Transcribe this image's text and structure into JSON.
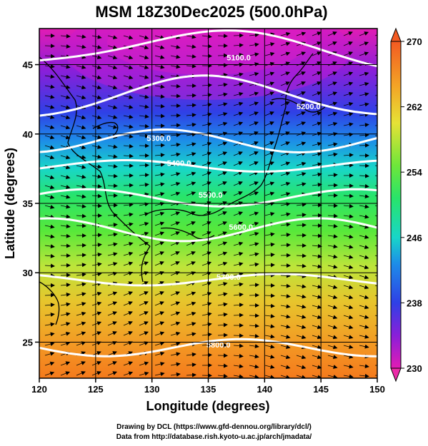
{
  "chart_data": {
    "type": "heatmap",
    "title": "MSM 18Z30Dec2025 (500.0hPa)",
    "xlabel": "Longitude (degrees)",
    "ylabel": "Latitude  (degrees)",
    "xlim": [
      120,
      150
    ],
    "ylim": [
      22.4,
      47.6
    ],
    "xticks": [
      120,
      125,
      130,
      135,
      140,
      145,
      150
    ],
    "yticks": [
      25,
      30,
      35,
      40,
      45
    ],
    "xticklabels": [
      "120",
      "125",
      "130",
      "135",
      "140",
      "145",
      "150"
    ],
    "yticklabels": [
      "25",
      "30",
      "35",
      "40",
      "45"
    ],
    "grid": true,
    "colorbar": {
      "min": 230,
      "max": 270,
      "ticks": [
        230,
        238,
        246,
        254,
        262,
        270
      ],
      "ticklabels": [
        "230",
        "238",
        "246",
        "254",
        "262",
        "270"
      ],
      "extend": "both"
    },
    "contours": [
      {
        "label": "5100.0",
        "lon": 137.7,
        "lat": 45.3
      },
      {
        "label": "5200.0",
        "lon": 143.9,
        "lat": 41.8
      },
      {
        "label": "5300.0",
        "lon": 130.6,
        "lat": 39.5
      },
      {
        "label": "5400.0",
        "lon": 132.4,
        "lat": 37.7
      },
      {
        "label": "5500.0",
        "lon": 135.2,
        "lat": 35.4
      },
      {
        "label": "5600.0",
        "lon": 137.9,
        "lat": 33.1
      },
      {
        "label": "5700.0",
        "lon": 136.8,
        "lat": 29.5
      },
      {
        "label": "5800.0",
        "lon": 135.9,
        "lat": 24.6
      }
    ]
  },
  "credits": {
    "line1": "Drawing by DCL (https://www.gfd-dennou.org/library/dcl/)",
    "line2": "Data from http://database.rish.kyoto-u.ac.jp/arch/jmadata/"
  },
  "colors": {
    "contour": "#ffffff",
    "vectors": "#000000",
    "coast": "#000000"
  }
}
